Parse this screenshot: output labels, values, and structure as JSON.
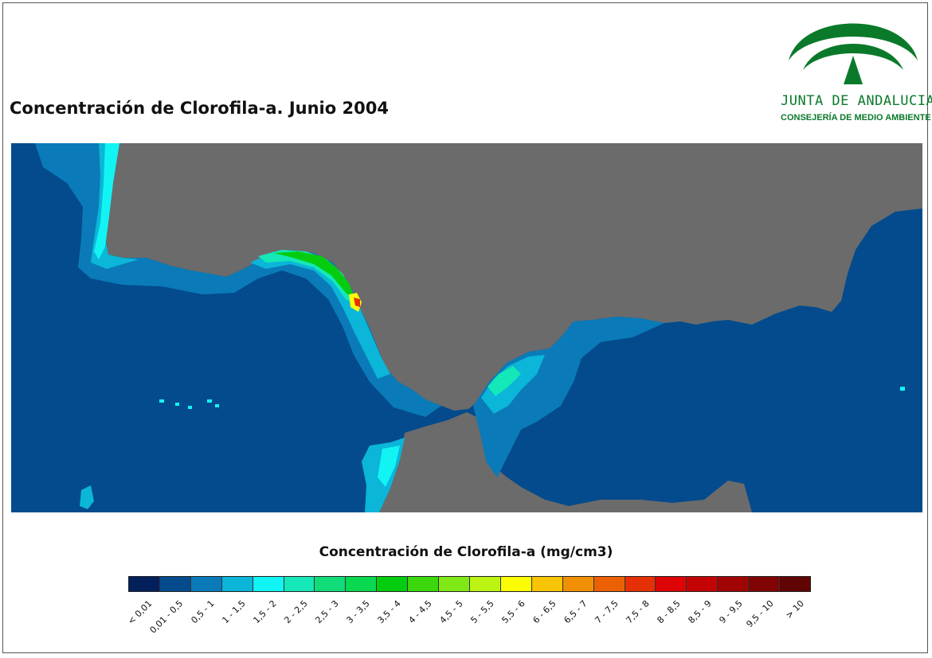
{
  "title": "Concentración de Clorofila-a. Junio 2004",
  "logo": {
    "name": "JUNTA DE ANDALUCIA",
    "subtitle": "CONSEJERÍA DE MEDIO AMBIENTE",
    "color": "#0a7a2a"
  },
  "map": {
    "land_color": "#6b6b6b",
    "sea_color": "#034b8c"
  },
  "legend": {
    "title": "Concentración de Clorofila-a (mg/cm3)",
    "classes": [
      {
        "label": "< 0,01",
        "color": "#04205c"
      },
      {
        "label": "0,01 - 0,5",
        "color": "#034b8c"
      },
      {
        "label": "0,5 - 1",
        "color": "#0a7bb8"
      },
      {
        "label": "1 - 1,5",
        "color": "#0bb6d8"
      },
      {
        "label": "1,5 - 2",
        "color": "#12f4f4"
      },
      {
        "label": "2 - 2,5",
        "color": "#14e8b8"
      },
      {
        "label": "2,5 - 3",
        "color": "#10dc78"
      },
      {
        "label": "3 - 3,5",
        "color": "#0ad850"
      },
      {
        "label": "3,5 - 4",
        "color": "#06cc10"
      },
      {
        "label": "4 - 4,5",
        "color": "#3ad80c"
      },
      {
        "label": "4,5 - 5",
        "color": "#80e816"
      },
      {
        "label": "5 - 5,5",
        "color": "#bcf414"
      },
      {
        "label": "5,5 - 6",
        "color": "#fcfc04"
      },
      {
        "label": "6 - 6,5",
        "color": "#f8c404"
      },
      {
        "label": "6,5 - 7",
        "color": "#f09004"
      },
      {
        "label": "7 - 7,5",
        "color": "#ec6004"
      },
      {
        "label": "7,5 - 8",
        "color": "#e43004"
      },
      {
        "label": "8 - 8,5",
        "color": "#dc0404"
      },
      {
        "label": "8,5 - 9",
        "color": "#c40404"
      },
      {
        "label": "9 - 9,5",
        "color": "#a00404"
      },
      {
        "label": "9,5 - 10",
        "color": "#800404"
      },
      {
        "label": "> 10",
        "color": "#600404"
      }
    ]
  }
}
